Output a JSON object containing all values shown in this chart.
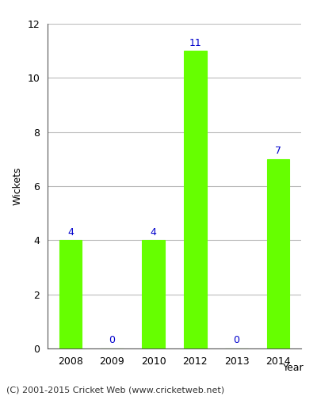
{
  "years": [
    2008,
    2009,
    2010,
    2012,
    2013,
    2014
  ],
  "values": [
    4,
    0,
    4,
    11,
    0,
    7
  ],
  "bar_color": "#66ff00",
  "bar_edgecolor": "#66ff00",
  "label_color": "#0000cc",
  "xlabel": "Year",
  "ylabel": "Wickets",
  "ylim": [
    0,
    12
  ],
  "yticks": [
    0,
    2,
    4,
    6,
    8,
    10,
    12
  ],
  "figsize": [
    4.0,
    5.0
  ],
  "dpi": 100,
  "footer": "(C) 2001-2015 Cricket Web (www.cricketweb.net)",
  "bar_width": 0.55,
  "label_fontsize": 9,
  "axis_label_fontsize": 9,
  "tick_fontsize": 9,
  "footer_fontsize": 8,
  "background_color": "#ffffff",
  "grid_color": "#bbbbbb",
  "spine_color": "#555555"
}
